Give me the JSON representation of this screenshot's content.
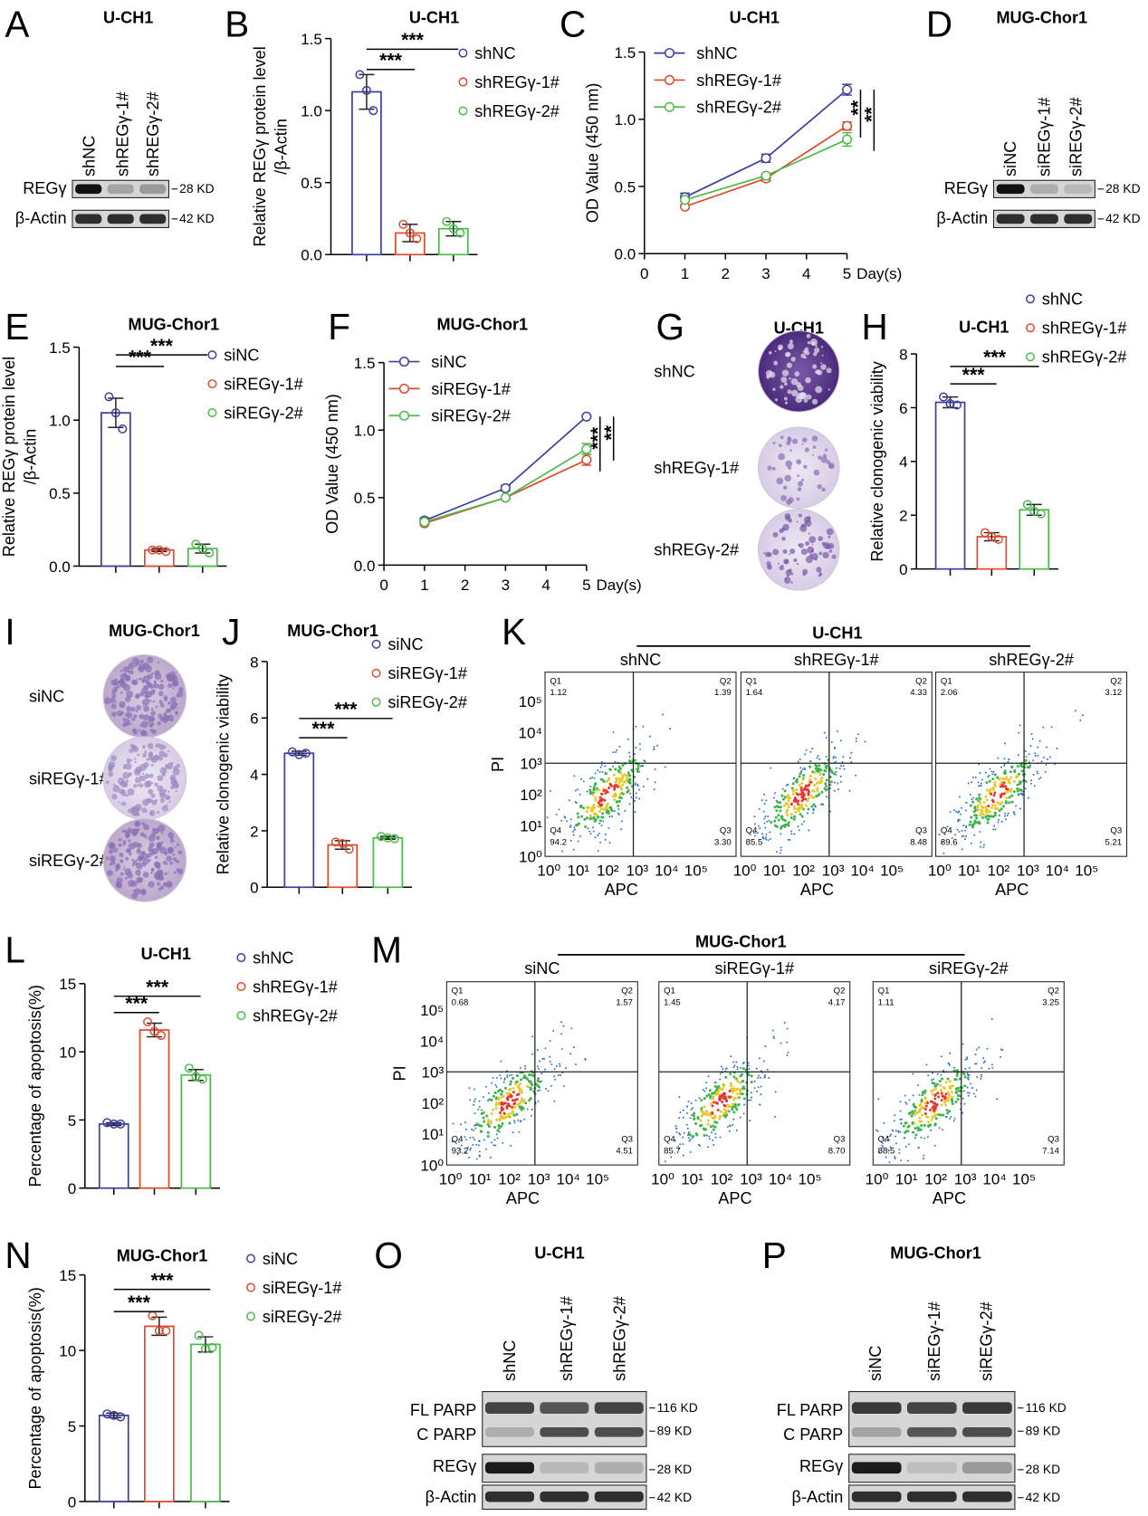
{
  "chart_data": [
    {
      "panel": "B",
      "type": "bar",
      "title": "U-CH1",
      "y_label": [
        "Relative REGγ protein level",
        "/β-Actin"
      ],
      "ylim": [
        0,
        1.5
      ],
      "yticks": [
        {
          "value": 0,
          "label": "0.0"
        },
        0.5,
        {
          "value": 1,
          "label": "1.0"
        },
        1.5
      ],
      "series": [
        {
          "name": "shNC",
          "color": "#3d3fa0",
          "values": [
            1.13
          ],
          "errors": [
            0.12
          ],
          "points": [
            1.25,
            1.0,
            1.14
          ]
        },
        {
          "name": "shREGγ-1#",
          "color": "#e04a2d",
          "values": [
            0.15
          ],
          "errors": [
            0.06
          ],
          "points": [
            0.21,
            0.11,
            0.15
          ]
        },
        {
          "name": "shREGγ-2#",
          "color": "#4cbb4c",
          "values": [
            0.18
          ],
          "errors": [
            0.05
          ],
          "points": [
            0.23,
            0.15,
            0.18
          ]
        }
      ],
      "annotations": [
        "***",
        "***"
      ]
    },
    {
      "panel": "C",
      "type": "line",
      "title": "U-CH1",
      "y_label": [
        "OD Value (450 nm)"
      ],
      "x_label": "Day(s)",
      "x": [
        1,
        3,
        5
      ],
      "xlim": [
        0,
        5
      ],
      "xticks": [
        0,
        1,
        2,
        3,
        4,
        5
      ],
      "ylim": [
        0,
        1.5
      ],
      "yticks": [
        {
          "value": 0,
          "label": "0.0"
        },
        0.5,
        {
          "value": 1,
          "label": "1.0"
        },
        1.5
      ],
      "series": [
        {
          "name": "shNC",
          "color": "#3d3fa0",
          "values": [
            0.42,
            0.71,
            1.22
          ],
          "errors": [
            0.03,
            0.03,
            0.04
          ]
        },
        {
          "name": "shREGγ-1#",
          "color": "#e04a2d",
          "values": [
            0.35,
            0.56,
            0.95
          ],
          "errors": [
            0.01,
            0.02,
            0.03
          ]
        },
        {
          "name": "shREGγ-2#",
          "color": "#4cbb4c",
          "values": [
            0.4,
            0.58,
            0.85
          ],
          "errors": [
            0.01,
            0.01,
            0.05
          ]
        }
      ],
      "annotations": [
        "**",
        "**"
      ]
    },
    {
      "panel": "E",
      "type": "bar",
      "title": "MUG-Chor1",
      "y_label": [
        "Relative REGγ protein level",
        "/β-Actin"
      ],
      "ylim": [
        0,
        1.5
      ],
      "yticks": [
        {
          "value": 0,
          "label": "0.0"
        },
        0.5,
        {
          "value": 1,
          "label": "1.0"
        },
        1.5
      ],
      "series": [
        {
          "name": "siNC",
          "color": "#3d3fa0",
          "values": [
            1.05
          ],
          "errors": [
            0.1
          ],
          "points": [
            1.16,
            0.94,
            1.05
          ]
        },
        {
          "name": "siREGγ-1#",
          "color": "#e04a2d",
          "values": [
            0.11
          ],
          "errors": [
            0.01
          ],
          "points": [
            0.11,
            0.1,
            0.11
          ]
        },
        {
          "name": "siREGγ-2#",
          "color": "#4cbb4c",
          "values": [
            0.12
          ],
          "errors": [
            0.03
          ],
          "points": [
            0.15,
            0.09,
            0.12
          ]
        }
      ],
      "annotations": [
        "***",
        "***"
      ]
    },
    {
      "panel": "F",
      "type": "line",
      "title": "MUG-Chor1",
      "y_label": [
        "OD Value (450 nm)"
      ],
      "x_label": "Day(s)",
      "x": [
        1,
        3,
        5
      ],
      "xlim": [
        0,
        5
      ],
      "xticks": [
        0,
        1,
        2,
        3,
        4,
        5
      ],
      "ylim": [
        0,
        1.5
      ],
      "yticks": [
        {
          "value": 0,
          "label": "0.0"
        },
        0.5,
        {
          "value": 1,
          "label": "1.0"
        },
        1.5
      ],
      "series": [
        {
          "name": "siNC",
          "color": "#3d3fa0",
          "values": [
            0.33,
            0.57,
            1.1
          ],
          "errors": [
            0.02,
            0.02,
            0.01
          ]
        },
        {
          "name": "siREGγ-1#",
          "color": "#e04a2d",
          "values": [
            0.31,
            0.5,
            0.78
          ],
          "errors": [
            0.01,
            0.01,
            0.04
          ]
        },
        {
          "name": "siREGγ-2#",
          "color": "#4cbb4c",
          "values": [
            0.32,
            0.5,
            0.86
          ],
          "errors": [
            0.01,
            0.01,
            0.04
          ]
        }
      ],
      "annotations": [
        "***",
        "**"
      ]
    },
    {
      "panel": "H",
      "type": "bar",
      "title": "U-CH1",
      "y_label": [
        "Relative clonogenic viability"
      ],
      "ylim": [
        0,
        8
      ],
      "yticks": [
        0,
        2,
        4,
        6,
        8
      ],
      "series": [
        {
          "name": "shNC",
          "color": "#3d3fa0",
          "values": [
            6.2
          ],
          "errors": [
            0.2
          ],
          "points": [
            6.4,
            6.1,
            6.15
          ]
        },
        {
          "name": "shREGγ-1#",
          "color": "#e04a2d",
          "values": [
            1.2
          ],
          "errors": [
            0.15
          ],
          "points": [
            1.35,
            1.1,
            1.2
          ]
        },
        {
          "name": "shREGγ-2#",
          "color": "#4cbb4c",
          "values": [
            2.2
          ],
          "errors": [
            0.2
          ],
          "points": [
            2.4,
            2.05,
            2.15
          ]
        }
      ],
      "annotations": [
        "***",
        "***"
      ]
    },
    {
      "panel": "J",
      "type": "bar",
      "title": "MUG-Chor1",
      "y_label": [
        "Relative clonogenic viability"
      ],
      "ylim": [
        0,
        8
      ],
      "yticks": [
        0,
        2,
        4,
        6,
        8
      ],
      "series": [
        {
          "name": "siNC",
          "color": "#3d3fa0",
          "values": [
            4.75
          ],
          "errors": [
            0.07
          ],
          "points": [
            4.8,
            4.75,
            4.7
          ]
        },
        {
          "name": "siREGγ-1#",
          "color": "#e04a2d",
          "values": [
            1.5
          ],
          "errors": [
            0.15
          ],
          "points": [
            1.6,
            1.35,
            1.55
          ]
        },
        {
          "name": "siREGγ-2#",
          "color": "#4cbb4c",
          "values": [
            1.75
          ],
          "errors": [
            0.05
          ],
          "points": [
            1.8,
            1.72,
            1.75
          ]
        }
      ],
      "annotations": [
        "***",
        "***"
      ]
    },
    {
      "panel": "L",
      "type": "bar",
      "title": "U-CH1",
      "y_label": [
        "Percentage of apoptosis(%)"
      ],
      "ylim": [
        0,
        15
      ],
      "yticks": [
        0,
        5,
        10,
        15
      ],
      "series": [
        {
          "name": "shNC",
          "color": "#3d3fa0",
          "values": [
            4.7
          ],
          "errors": [
            0.1
          ],
          "points": [
            4.8,
            4.7,
            4.7
          ]
        },
        {
          "name": "shREGγ-1#",
          "color": "#e04a2d",
          "values": [
            11.6
          ],
          "errors": [
            0.5
          ],
          "points": [
            12.2,
            11.2,
            11.5
          ]
        },
        {
          "name": "shREGγ-2#",
          "color": "#4cbb4c",
          "values": [
            8.3
          ],
          "errors": [
            0.4
          ],
          "points": [
            8.8,
            8.0,
            8.2
          ]
        }
      ],
      "annotations": [
        "***",
        "***"
      ]
    },
    {
      "panel": "N",
      "type": "bar",
      "title": "MUG-Chor1",
      "y_label": [
        "Percentage of apoptosis(%)"
      ],
      "ylim": [
        0,
        15
      ],
      "yticks": [
        0,
        5,
        10,
        15
      ],
      "series": [
        {
          "name": "siNC",
          "color": "#3d3fa0",
          "values": [
            5.7
          ],
          "errors": [
            0.15
          ],
          "points": [
            5.8,
            5.6,
            5.7
          ]
        },
        {
          "name": "siREGγ-1#",
          "color": "#e04a2d",
          "values": [
            11.6
          ],
          "errors": [
            0.6
          ],
          "points": [
            12.3,
            11.3,
            11.3
          ]
        },
        {
          "name": "siREGγ-2#",
          "color": "#4cbb4c",
          "values": [
            10.4
          ],
          "errors": [
            0.5
          ],
          "points": [
            11.0,
            10.2,
            10.1
          ]
        }
      ],
      "annotations": [
        "***",
        "***"
      ]
    }
  ],
  "blots": [
    {
      "panel": "A",
      "title": "U-CH1",
      "lanes": [
        "shNC",
        "shREGγ-1#",
        "shREGγ-2#"
      ],
      "labels": [
        "REGγ",
        "β-Actin"
      ],
      "sizes": [
        "28 KD",
        "42 KD"
      ]
    },
    {
      "panel": "D",
      "title": "MUG-Chor1",
      "lanes": [
        "siNC",
        "siREGγ-1#",
        "siREGγ-2#"
      ],
      "labels": [
        "REGγ",
        "β-Actin"
      ],
      "sizes": [
        "28 KD",
        "42 KD"
      ]
    },
    {
      "panel": "O",
      "title": "U-CH1",
      "lanes": [
        "shNC",
        "shREGγ-1#",
        "shREGγ-2#"
      ],
      "labels": [
        "FL PARP",
        "C PARP",
        "REGγ",
        "β-Actin"
      ],
      "sizes": [
        "116 KD",
        "89 KD",
        "28 KD",
        "42 KD"
      ]
    },
    {
      "panel": "P",
      "title": "MUG-Chor1",
      "lanes": [
        "siNC",
        "siREGγ-1#",
        "siREGγ-2#"
      ],
      "labels": [
        "FL PARP",
        "C PARP",
        "REGγ",
        "β-Actin"
      ],
      "sizes": [
        "116 KD",
        "89 KD",
        "28 KD",
        "42 KD"
      ]
    }
  ],
  "colony": [
    {
      "panel": "G",
      "title": "U-CH1",
      "rows": [
        "shNC",
        "shREGγ-1#",
        "shREGγ-2#"
      ]
    },
    {
      "panel": "I",
      "title": "MUG-Chor1",
      "rows": [
        "siNC",
        "siREGγ-1#",
        "siREGγ-2#"
      ]
    }
  ],
  "flow": [
    {
      "panel": "K",
      "title": "U-CH1",
      "x_label": "APC",
      "y_label": "PI",
      "ticks": [
        "10⁰",
        "10¹",
        "10²",
        "10³",
        "10⁴",
        "10⁵"
      ],
      "plots": [
        {
          "name": "shNC",
          "quadrants": [
            [
              "Q1",
              "1.12"
            ],
            [
              "Q2",
              "1.39"
            ],
            [
              "Q3",
              "3.30"
            ],
            [
              "Q4",
              "94.2"
            ]
          ]
        },
        {
          "name": "shREGγ-1#",
          "quadrants": [
            [
              "Q1",
              "1.64"
            ],
            [
              "Q2",
              "4.33"
            ],
            [
              "Q3",
              "8.48"
            ],
            [
              "Q4",
              "85.5"
            ]
          ]
        },
        {
          "name": "shREGγ-2#",
          "quadrants": [
            [
              "Q1",
              "2.06"
            ],
            [
              "Q2",
              "3.12"
            ],
            [
              "Q3",
              "5.21"
            ],
            [
              "Q4",
              "89.6"
            ]
          ]
        }
      ]
    },
    {
      "panel": "M",
      "title": "MUG-Chor1",
      "x_label": "APC",
      "y_label": "PI",
      "ticks": [
        "10⁰",
        "10¹",
        "10²",
        "10³",
        "10⁴",
        "10⁵"
      ],
      "plots": [
        {
          "name": "siNC",
          "quadrants": [
            [
              "Q1",
              "0.68"
            ],
            [
              "Q2",
              "1.57"
            ],
            [
              "Q3",
              "4.51"
            ],
            [
              "Q4",
              "93.2"
            ]
          ]
        },
        {
          "name": "siREGγ-1#",
          "quadrants": [
            [
              "Q1",
              "1.45"
            ],
            [
              "Q2",
              "4.17"
            ],
            [
              "Q3",
              "8.70"
            ],
            [
              "Q4",
              "85.7"
            ]
          ]
        },
        {
          "name": "siREGγ-2#",
          "quadrants": [
            [
              "Q1",
              "1.11"
            ],
            [
              "Q2",
              "3.25"
            ],
            [
              "Q3",
              "7.14"
            ],
            [
              "Q4",
              "88.5"
            ]
          ]
        }
      ]
    }
  ]
}
